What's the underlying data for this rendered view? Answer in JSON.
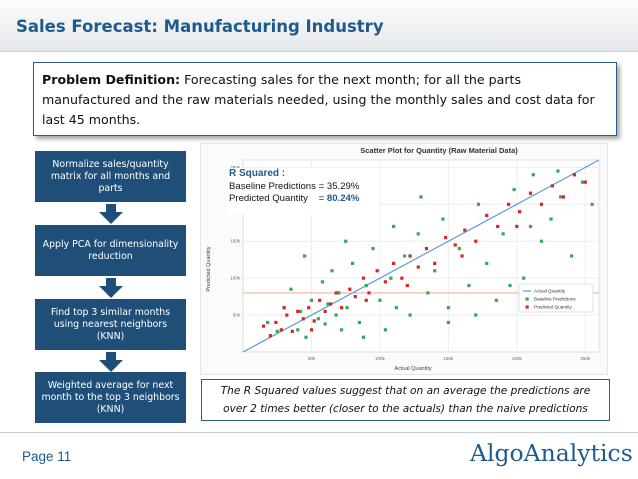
{
  "title": "Sales Forecast: Manufacturing Industry",
  "problem": {
    "label": "Problem Definition:",
    "text": " Forecasting sales for the next month; for all the parts manufactured and the raw materials needed, using the monthly sales and cost data for last 45 months."
  },
  "steps": [
    {
      "label": "Normalize sales/quantity matrix for all months and parts"
    },
    {
      "label": "Apply PCA for dimensionality reduction"
    },
    {
      "label": "Find top 3 similar months using nearest neighbors (KNN)"
    },
    {
      "label": "Weighted average for next month to the top 3 neighbors (KNN)"
    }
  ],
  "r_squared": {
    "title": "R Squared :",
    "baseline_label": "Baseline Predictions = ",
    "baseline_value": "35.29%",
    "predicted_label": "Predicted Quantity    = ",
    "predicted_value": "80.24%"
  },
  "chart_data": {
    "type": "scatter",
    "title": "Scatter Plot for  Quantity (Raw Material Data)",
    "xlabel": "Actual Quantity",
    "ylabel": "Predicted Quantity",
    "xlim": [
      0,
      260000
    ],
    "ylim": [
      0,
      260000
    ],
    "x_ticks": [
      "50k",
      "100k",
      "150k",
      "200k",
      "250k"
    ],
    "y_ticks": [
      "50k",
      "100k",
      "150k",
      "200k",
      "250k"
    ],
    "legend": [
      "Actual Quantity",
      "Baseline Predictions",
      "Predicted Quantity"
    ],
    "legend_position": "bottom-right",
    "colors": {
      "actual": "#5b9bd5",
      "baseline": "#3aa655",
      "predicted": "#d62728",
      "reference": "#e8a07a"
    },
    "baseline_mean_line": 80000,
    "series": [
      {
        "name": "Actual Quantity",
        "type": "line",
        "x": [
          0,
          260000
        ],
        "y": [
          0,
          260000
        ]
      },
      {
        "name": "Baseline Predictions",
        "x": [
          18000,
          25000,
          30000,
          35000,
          40000,
          42000,
          46000,
          50000,
          55000,
          58000,
          60000,
          62000,
          65000,
          68000,
          70000,
          72000,
          76000,
          80000,
          85000,
          90000,
          95000,
          100000,
          104000,
          108000,
          112000,
          118000,
          122000,
          128000,
          135000,
          140000,
          146000,
          150000,
          158000,
          165000,
          172000,
          178000,
          185000,
          190000,
          198000,
          205000,
          212000,
          218000,
          225000,
          232000,
          240000,
          248000,
          255000,
          45000,
          75000,
          110000,
          150000,
          195000,
          230000,
          88000,
          130000,
          170000,
          210000
        ],
        "y": [
          40000,
          28000,
          60000,
          85000,
          30000,
          55000,
          20000,
          70000,
          45000,
          95000,
          38000,
          65000,
          110000,
          50000,
          80000,
          30000,
          60000,
          120000,
          40000,
          90000,
          140000,
          70000,
          30000,
          100000,
          60000,
          130000,
          50000,
          160000,
          80000,
          110000,
          180000,
          60000,
          140000,
          90000,
          200000,
          120000,
          70000,
          160000,
          220000,
          100000,
          240000,
          150000,
          180000,
          210000,
          130000,
          230000,
          200000,
          130000,
          150000,
          170000,
          40000,
          90000,
          245000,
          20000,
          210000,
          50000,
          170000
        ]
      },
      {
        "name": "Predicted Quantity",
        "x": [
          15000,
          20000,
          24000,
          28000,
          32000,
          36000,
          40000,
          44000,
          48000,
          52000,
          56000,
          60000,
          64000,
          68000,
          72000,
          78000,
          82000,
          88000,
          92000,
          98000,
          104000,
          110000,
          116000,
          122000,
          128000,
          134000,
          140000,
          148000,
          155000,
          162000,
          170000,
          178000,
          186000,
          194000,
          202000,
          210000,
          218000,
          226000,
          234000,
          242000,
          250000,
          30000,
          50000,
          90000,
          120000,
          160000,
          200000
        ],
        "y": [
          35000,
          22000,
          40000,
          30000,
          50000,
          28000,
          55000,
          45000,
          60000,
          42000,
          70000,
          55000,
          65000,
          80000,
          60000,
          85000,
          75000,
          100000,
          80000,
          110000,
          95000,
          120000,
          100000,
          130000,
          115000,
          140000,
          120000,
          155000,
          145000,
          165000,
          150000,
          185000,
          170000,
          200000,
          190000,
          215000,
          200000,
          225000,
          210000,
          240000,
          230000,
          60000,
          30000,
          70000,
          90000,
          130000,
          170000
        ]
      }
    ]
  },
  "conclusion": {
    "line1": "The R Squared values suggest that on an average the predictions are",
    "line2": "over 2 times better (closer to the actuals) than the naive predictions"
  },
  "footer": {
    "page_label": "Page  11",
    "logo_text": "AlgoAnalytics"
  }
}
